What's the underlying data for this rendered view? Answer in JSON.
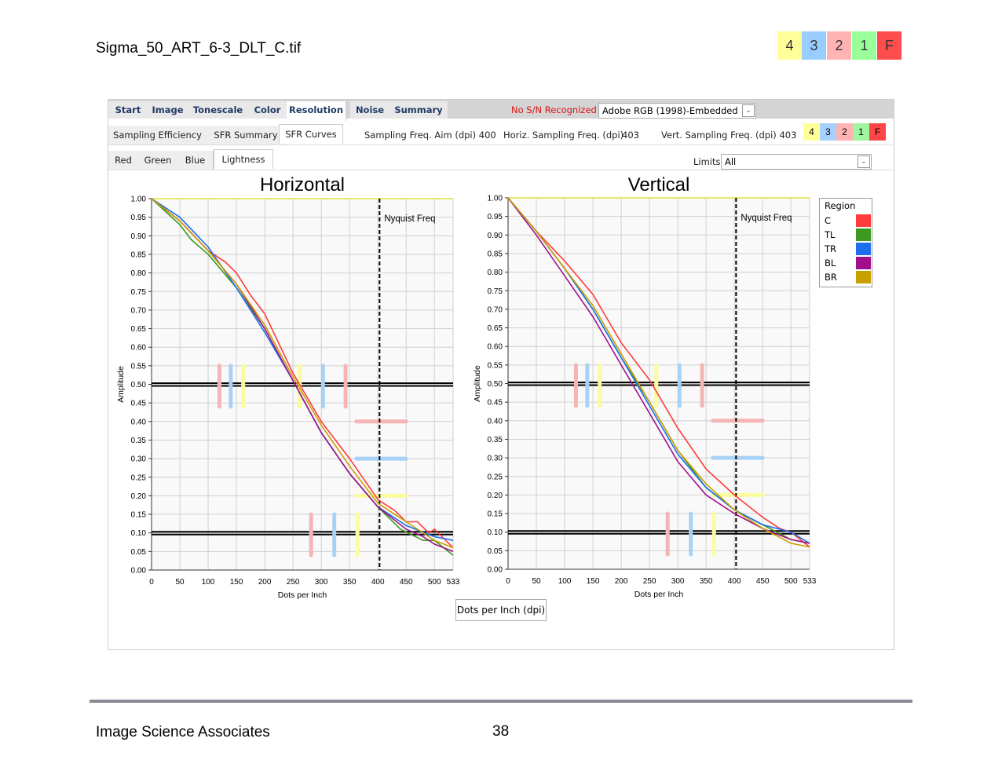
{
  "doc": {
    "title": "Sigma_50_ART_6-3_DLT_C.tif",
    "footer": "Image Science Associates",
    "page": "38",
    "grades": [
      {
        "label": "4",
        "color": "#ffff99"
      },
      {
        "label": "3",
        "color": "#99ccff"
      },
      {
        "label": "2",
        "color": "#ffb3b3"
      },
      {
        "label": "1",
        "color": "#99ff99"
      },
      {
        "label": "F",
        "color": "#ff4d4d"
      }
    ]
  },
  "tabs": [
    "Start",
    "Image",
    "Tonescale",
    "Color",
    "Resolution",
    "Noise",
    "Summary"
  ],
  "status": "No S/N Recognized",
  "profile": "Adobe RGB (1998)-Embedded",
  "subtabs": [
    "Sampling Efficiency",
    "SFR Summary",
    "SFR Curves"
  ],
  "sampling": {
    "aim": "Sampling Freq. Aim (dpi) 400",
    "horiz_label": "Horiz. Sampling Freq. (dpi)",
    "horiz": "403",
    "vert": "Vert. Sampling Freq. (dpi) 403"
  },
  "small_grades": [
    "4",
    "3",
    "2",
    "1",
    "F"
  ],
  "channels": [
    "Red",
    "Green",
    "Blue",
    "Lightness"
  ],
  "limits": {
    "label": "Limits",
    "value": "All"
  },
  "xaxis_button": "Dots per Inch (dpi)",
  "legend": {
    "title": "Region",
    "items": [
      {
        "name": "C",
        "color": "#ff3b3b"
      },
      {
        "name": "TL",
        "color": "#3c9a1e"
      },
      {
        "name": "TR",
        "color": "#1e6ff0"
      },
      {
        "name": "BL",
        "color": "#a0108a"
      },
      {
        "name": "BR",
        "color": "#c8a000"
      }
    ]
  },
  "chart_data": [
    {
      "type": "line",
      "title": "Horizontal",
      "xlabel": "Dots per Inch",
      "ylabel": "Amplitude",
      "xlim": [
        0,
        533
      ],
      "ylim": [
        0,
        1
      ],
      "xticks": [
        0,
        50,
        100,
        150,
        200,
        250,
        300,
        350,
        400,
        450,
        500,
        533
      ],
      "yticks": [
        "0.00",
        "0.05",
        "0.10",
        "0.15",
        "0.20",
        "0.25",
        "0.30",
        "0.35",
        "0.40",
        "0.45",
        "0.50",
        "0.55",
        "0.60",
        "0.65",
        "0.70",
        "0.75",
        "0.80",
        "0.85",
        "0.90",
        "0.95",
        "1.00"
      ],
      "nyquist": {
        "x": 403,
        "label": "Nyquist Freq"
      },
      "series": [
        {
          "name": "C",
          "x": [
            0,
            50,
            100,
            130,
            150,
            175,
            200,
            250,
            300,
            350,
            400,
            430,
            450,
            470,
            490,
            500,
            533
          ],
          "y": [
            1,
            0.94,
            0.86,
            0.83,
            0.8,
            0.74,
            0.69,
            0.53,
            0.4,
            0.3,
            0.19,
            0.16,
            0.13,
            0.13,
            0.1,
            0.11,
            0.06
          ]
        },
        {
          "name": "TL",
          "x": [
            0,
            50,
            70,
            100,
            150,
            200,
            250,
            300,
            350,
            400,
            440,
            480,
            500,
            533
          ],
          "y": [
            1,
            0.93,
            0.89,
            0.85,
            0.76,
            0.65,
            0.51,
            0.37,
            0.26,
            0.17,
            0.11,
            0.08,
            0.08,
            0.04
          ]
        },
        {
          "name": "TR",
          "x": [
            0,
            50,
            100,
            150,
            200,
            250,
            300,
            350,
            400,
            450,
            500,
            533
          ],
          "y": [
            1,
            0.95,
            0.87,
            0.76,
            0.64,
            0.51,
            0.37,
            0.26,
            0.17,
            0.12,
            0.09,
            0.08
          ]
        },
        {
          "name": "BL",
          "x": [
            0,
            50,
            100,
            150,
            200,
            250,
            300,
            350,
            400,
            450,
            480,
            500,
            533
          ],
          "y": [
            1,
            0.94,
            0.86,
            0.77,
            0.65,
            0.51,
            0.37,
            0.26,
            0.17,
            0.11,
            0.09,
            0.07,
            0.05
          ]
        },
        {
          "name": "BR",
          "x": [
            0,
            50,
            100,
            150,
            200,
            250,
            300,
            350,
            400,
            450,
            500,
            533
          ],
          "y": [
            1,
            0.94,
            0.86,
            0.77,
            0.66,
            0.52,
            0.39,
            0.28,
            0.18,
            0.13,
            0.08,
            0.06
          ]
        }
      ]
    },
    {
      "type": "line",
      "title": "Vertical",
      "xlabel": "Dots per Inch",
      "ylabel": "Amplitude",
      "xlim": [
        0,
        533
      ],
      "ylim": [
        0,
        1
      ],
      "xticks": [
        0,
        50,
        100,
        150,
        200,
        250,
        300,
        350,
        400,
        450,
        500,
        533
      ],
      "yticks": [
        "0.00",
        "0.05",
        "0.10",
        "0.15",
        "0.20",
        "0.25",
        "0.30",
        "0.35",
        "0.40",
        "0.45",
        "0.50",
        "0.55",
        "0.60",
        "0.65",
        "0.70",
        "0.75",
        "0.80",
        "0.85",
        "0.90",
        "0.95",
        "1.00"
      ],
      "nyquist": {
        "x": 403,
        "label": "Nyquist Freq"
      },
      "series": [
        {
          "name": "C",
          "x": [
            0,
            50,
            100,
            150,
            200,
            250,
            300,
            350,
            400,
            450,
            480,
            500,
            533
          ],
          "y": [
            1,
            0.91,
            0.83,
            0.74,
            0.61,
            0.51,
            0.38,
            0.27,
            0.2,
            0.14,
            0.11,
            0.1,
            0.06
          ]
        },
        {
          "name": "TL",
          "x": [
            0,
            50,
            100,
            150,
            200,
            250,
            300,
            350,
            400,
            450,
            500,
            533
          ],
          "y": [
            1,
            0.91,
            0.81,
            0.7,
            0.57,
            0.45,
            0.32,
            0.22,
            0.16,
            0.12,
            0.08,
            0.07
          ]
        },
        {
          "name": "TR",
          "x": [
            0,
            50,
            100,
            150,
            200,
            250,
            300,
            350,
            400,
            450,
            500,
            533
          ],
          "y": [
            1,
            0.91,
            0.81,
            0.7,
            0.57,
            0.44,
            0.31,
            0.22,
            0.16,
            0.12,
            0.1,
            0.07
          ]
        },
        {
          "name": "BL",
          "x": [
            0,
            50,
            100,
            150,
            200,
            250,
            300,
            350,
            400,
            450,
            500,
            533
          ],
          "y": [
            1,
            0.9,
            0.79,
            0.68,
            0.55,
            0.42,
            0.29,
            0.2,
            0.15,
            0.11,
            0.08,
            0.07
          ]
        },
        {
          "name": "BR",
          "x": [
            0,
            50,
            100,
            150,
            200,
            250,
            300,
            350,
            400,
            450,
            500,
            533
          ],
          "y": [
            1,
            0.91,
            0.81,
            0.71,
            0.58,
            0.45,
            0.32,
            0.23,
            0.16,
            0.11,
            0.07,
            0.06
          ]
        }
      ]
    }
  ],
  "limit_markers": {
    "vertical": [
      {
        "x": 120,
        "color": "#f5b5b5"
      },
      {
        "x": 140,
        "color": "#a8d2f5"
      },
      {
        "x": 162,
        "color": "#fbfba0"
      },
      {
        "x": 262,
        "color": "#fbfba0"
      },
      {
        "x": 303,
        "color": "#a8d2f5"
      },
      {
        "x": 343,
        "color": "#f5b5b5"
      },
      {
        "x": 282,
        "color": "#f5b5b5"
      },
      {
        "x": 323,
        "color": "#a8d2f5"
      },
      {
        "x": 364,
        "color": "#fbfba0"
      }
    ],
    "horizontal": [
      {
        "y": 0.4,
        "x": [
          362,
          450
        ],
        "color": "#f5b5b5"
      },
      {
        "y": 0.3,
        "x": [
          362,
          450
        ],
        "color": "#a8d2f5"
      },
      {
        "y": 0.2,
        "x": [
          362,
          450
        ],
        "color": "#fbfba0"
      }
    ],
    "thresholds": [
      0.5,
      0.1
    ]
  }
}
